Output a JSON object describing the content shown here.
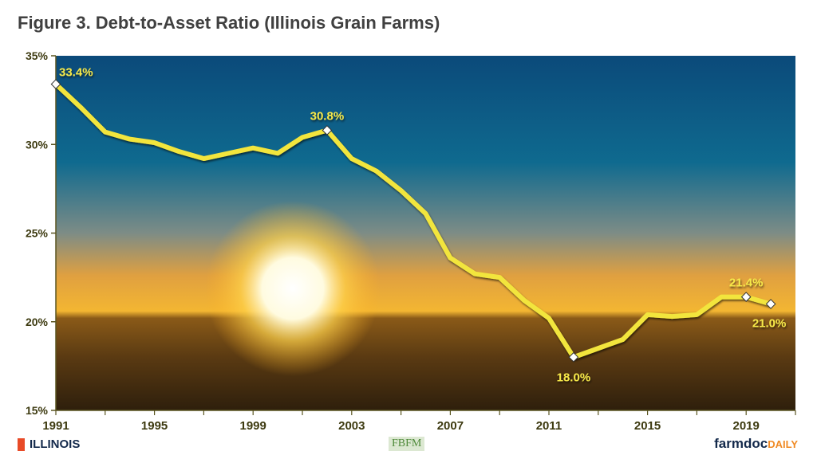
{
  "chart_data": {
    "type": "line",
    "title": "Figure 3. Debt-to-Asset Ratio (Illinois Grain Farms)",
    "xlabel": "",
    "ylabel": "",
    "xlim": [
      1991,
      2021
    ],
    "ylim": [
      15,
      35
    ],
    "y_ticks": [
      "15%",
      "20%",
      "25%",
      "30%",
      "35%"
    ],
    "x_ticks": [
      "1991",
      "1995",
      "1999",
      "2003",
      "2007",
      "2011",
      "2015",
      "2019"
    ],
    "grid": false,
    "line_color": "#f2e53c",
    "x": [
      1991,
      1992,
      1993,
      1994,
      1995,
      1996,
      1997,
      1998,
      1999,
      2000,
      2001,
      2002,
      2003,
      2004,
      2005,
      2006,
      2007,
      2008,
      2009,
      2010,
      2011,
      2012,
      2013,
      2014,
      2015,
      2016,
      2017,
      2018,
      2019,
      2020
    ],
    "values": [
      33.4,
      32.1,
      30.7,
      30.3,
      30.1,
      29.6,
      29.2,
      29.5,
      29.8,
      29.5,
      30.4,
      30.8,
      29.2,
      28.5,
      27.4,
      26.1,
      23.6,
      22.7,
      22.5,
      21.2,
      20.2,
      18.0,
      18.5,
      19.0,
      20.4,
      20.3,
      20.4,
      21.4,
      21.4,
      21.0
    ],
    "annotations": [
      {
        "x": 1991,
        "label": "33.4%",
        "pos": "above-right"
      },
      {
        "x": 2002,
        "label": "30.8%",
        "pos": "above"
      },
      {
        "x": 2012,
        "label": "18.0%",
        "pos": "below"
      },
      {
        "x": 2019,
        "label": "21.4%",
        "pos": "above"
      },
      {
        "x": 2020,
        "label": "21.0%",
        "pos": "below"
      }
    ]
  },
  "footer": {
    "illinois": "ILLINOIS",
    "fbfm": "FBFM",
    "farmdoc": "farmdoc",
    "daily": "DAILY"
  }
}
